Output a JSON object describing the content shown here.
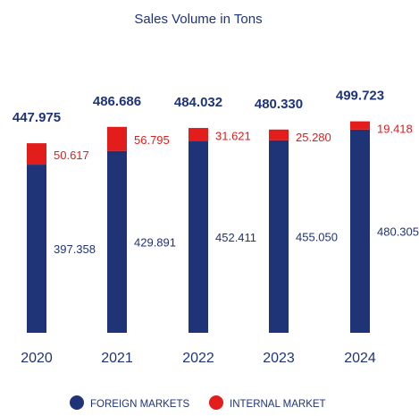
{
  "chart_data": {
    "type": "bar",
    "stacked": true,
    "title": "Sales Volume in Tons",
    "categories": [
      "2020",
      "2021",
      "2022",
      "2023",
      "2024"
    ],
    "series": [
      {
        "name": "FOREIGN MARKETS",
        "color": "#1f3377",
        "values": [
          397.358,
          429.891,
          452.411,
          455.05,
          480.305
        ],
        "labels": [
          "397.358",
          "429.891",
          "452.411",
          "455.050",
          "480.305"
        ]
      },
      {
        "name": "INTERNAL MARKET",
        "color": "#e31c1c",
        "values": [
          50.617,
          56.795,
          31.621,
          25.28,
          19.418
        ],
        "labels": [
          "50.617",
          "56.795",
          "31.621",
          "25.280",
          "19.418"
        ]
      }
    ],
    "totals": [
      "447.975",
      "486.686",
      "484.032",
      "480.330",
      "499.723"
    ],
    "legend_position": "bottom",
    "grid": false
  }
}
